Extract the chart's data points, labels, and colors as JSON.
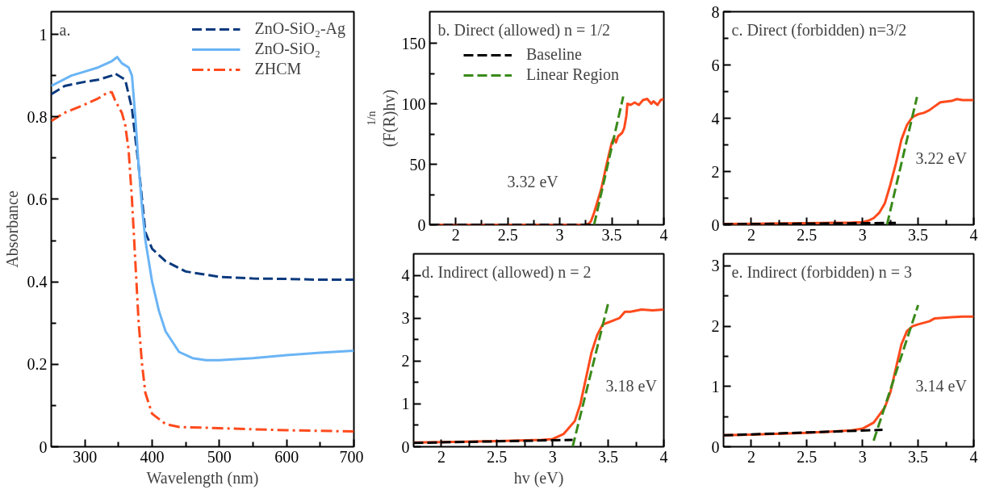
{
  "chart_data": [
    {
      "type": "line",
      "title": "a.",
      "xlabel": "Wavelength (nm)",
      "ylabel": "Absorbance",
      "xlim": [
        250,
        700
      ],
      "ylim": [
        0,
        1.055
      ],
      "xticks": [
        300,
        {
          "value": 350,
          "label": null
        },
        400,
        {
          "value": 450,
          "label": null
        },
        500,
        {
          "value": 550,
          "label": null
        },
        600,
        {
          "value": 650,
          "label": null
        },
        700
      ],
      "yticks": [
        0,
        {
          "value": 0.1,
          "label": null
        },
        0.2,
        {
          "value": 0.3,
          "label": null
        },
        0.4,
        {
          "value": 0.5,
          "label": null
        },
        0.6,
        {
          "value": 0.7,
          "label": null
        },
        0.8,
        {
          "value": 0.9,
          "label": null
        },
        1
      ],
      "grid": false,
      "legend": "top right",
      "marker": "none",
      "series": [
        {
          "name": "ZnO-SiO₂-Ag",
          "color": "#0b3a7e",
          "line_style": "dashed",
          "x": [
            250,
            270,
            300,
            320,
            340,
            345,
            360,
            370,
            375,
            380,
            385,
            390,
            400,
            420,
            450,
            500,
            550,
            600,
            650,
            700
          ],
          "values": [
            0.855,
            0.875,
            0.885,
            0.89,
            0.9,
            0.905,
            0.89,
            0.82,
            0.75,
            0.68,
            0.6,
            0.52,
            0.48,
            0.45,
            0.425,
            0.412,
            0.408,
            0.407,
            0.405,
            0.405
          ]
        },
        {
          "name": "ZnO-SiO₂",
          "color": "#6ab4f5",
          "line_style": "solid",
          "x": [
            250,
            280,
            300,
            320,
            340,
            348,
            355,
            365,
            370,
            375,
            380,
            385,
            390,
            400,
            410,
            420,
            440,
            460,
            480,
            500,
            550,
            600,
            650,
            700
          ],
          "values": [
            0.875,
            0.9,
            0.91,
            0.92,
            0.935,
            0.945,
            0.93,
            0.92,
            0.9,
            0.8,
            0.68,
            0.58,
            0.5,
            0.4,
            0.33,
            0.28,
            0.23,
            0.215,
            0.21,
            0.21,
            0.215,
            0.222,
            0.228,
            0.233
          ]
        },
        {
          "name": "ZHCM",
          "color": "#ff4a1c",
          "line_style": "dashdot",
          "x": [
            250,
            270,
            300,
            320,
            335,
            340,
            345,
            350,
            355,
            360,
            365,
            370,
            375,
            380,
            385,
            390,
            400,
            420,
            440,
            500,
            600,
            700
          ],
          "values": [
            0.79,
            0.81,
            0.83,
            0.845,
            0.86,
            0.86,
            0.84,
            0.825,
            0.81,
            0.78,
            0.72,
            0.6,
            0.45,
            0.3,
            0.2,
            0.13,
            0.08,
            0.055,
            0.048,
            0.045,
            0.04,
            0.037
          ]
        }
      ]
    },
    {
      "type": "line",
      "title": "b. Direct (allowed) n = 1/2",
      "ylabel": "(F(R)hv)$^{1/n}$",
      "xlim": [
        1.75,
        4
      ],
      "ylim": [
        0,
        176
      ],
      "xticks": [
        2,
        {
          "value": 2.25,
          "label": null
        },
        2.5,
        {
          "value": 2.75,
          "label": null
        },
        3,
        {
          "value": 3.25,
          "label": null
        },
        3.5,
        {
          "value": 3.75,
          "label": null
        },
        4
      ],
      "yticks": [
        0,
        {
          "value": 25,
          "label": null
        },
        50,
        {
          "value": 75,
          "label": null
        },
        100,
        {
          "value": 125,
          "label": null
        },
        150
      ],
      "grid": false,
      "legend": "top left",
      "marker": "none",
      "annotations": [
        "3.32 eV"
      ],
      "series": [
        {
          "color": "#ff4a1c",
          "line_style": "solid",
          "x": [
            1.75,
            2.5,
            3.25,
            3.28,
            3.3,
            3.33,
            3.4,
            3.45,
            3.5,
            3.52,
            3.54,
            3.56,
            3.6,
            3.62,
            3.64,
            3.65,
            3.68,
            3.72,
            3.76,
            3.8,
            3.84,
            3.88,
            3.9,
            3.94,
            3.97,
            4.0
          ],
          "values": [
            0,
            0,
            0,
            1,
            3,
            10,
            30,
            50,
            68,
            72,
            68,
            73,
            76,
            80,
            90,
            100,
            99,
            101,
            99,
            103,
            104,
            100,
            102,
            99,
            103,
            104
          ]
        },
        {
          "name": "Baseline",
          "color": "#000000",
          "line_style": "dashed",
          "x": [
            1.75,
            3.3
          ],
          "values": [
            0,
            0
          ]
        },
        {
          "name": "Linear Region",
          "color": "#3a8a1a",
          "line_style": "dashed",
          "x": [
            3.33,
            3.61
          ],
          "values": [
            0,
            106
          ]
        }
      ]
    },
    {
      "type": "line",
      "title": "c. Direct (forbidden) n=3/2",
      "xlim": [
        1.75,
        4
      ],
      "ylim": [
        0,
        8
      ],
      "xticks": [
        2,
        {
          "value": 2.25,
          "label": null
        },
        2.5,
        {
          "value": 2.75,
          "label": null
        },
        3,
        {
          "value": 3.25,
          "label": null
        },
        3.5,
        {
          "value": 3.75,
          "label": null
        },
        4
      ],
      "yticks": [
        0,
        {
          "value": 1,
          "label": null
        },
        2,
        {
          "value": 3,
          "label": null
        },
        4,
        {
          "value": 5,
          "label": null
        },
        6,
        {
          "value": 7,
          "label": null
        },
        8
      ],
      "grid": false,
      "marker": "none",
      "annotations": [
        "3.22 eV"
      ],
      "series": [
        {
          "color": "#ff4a1c",
          "line_style": "solid",
          "x": [
            1.75,
            2.0,
            2.5,
            2.9,
            3.0,
            3.05,
            3.1,
            3.15,
            3.2,
            3.25,
            3.3,
            3.35,
            3.4,
            3.45,
            3.5,
            3.55,
            3.6,
            3.65,
            3.7,
            3.8,
            3.85,
            3.9,
            4.0
          ],
          "values": [
            0.03,
            0.04,
            0.06,
            0.08,
            0.1,
            0.15,
            0.25,
            0.45,
            0.8,
            1.5,
            2.3,
            3.2,
            3.75,
            4.05,
            4.15,
            4.2,
            4.3,
            4.45,
            4.6,
            4.65,
            4.72,
            4.68,
            4.68
          ]
        },
        {
          "color": "#000000",
          "line_style": "dashed",
          "x": [
            1.75,
            3.3
          ],
          "values": [
            0.02,
            0.07
          ]
        },
        {
          "color": "#3a8a1a",
          "line_style": "dashed",
          "x": [
            3.22,
            3.49
          ],
          "values": [
            0,
            4.8
          ]
        }
      ]
    },
    {
      "type": "line",
      "title": "d. Indirect (allowed) n = 2",
      "xlabel": "hv (eV)",
      "xlim": [
        1.75,
        4
      ],
      "ylim": [
        0,
        4.5
      ],
      "xticks": [
        2,
        {
          "value": 2.25,
          "label": null
        },
        2.5,
        {
          "value": 2.75,
          "label": null
        },
        3,
        {
          "value": 3.25,
          "label": null
        },
        3.5,
        {
          "value": 3.75,
          "label": null
        },
        4
      ],
      "yticks": [
        0,
        {
          "value": 0.5,
          "label": null
        },
        1,
        {
          "value": 1.5,
          "label": null
        },
        2,
        {
          "value": 2.5,
          "label": null
        },
        3,
        {
          "value": 3.5,
          "label": null
        },
        4
      ],
      "grid": false,
      "marker": "none",
      "annotations": [
        "3.18 eV"
      ],
      "series": [
        {
          "color": "#ff4a1c",
          "line_style": "solid",
          "x": [
            1.75,
            2.0,
            2.5,
            2.9,
            3.0,
            3.1,
            3.2,
            3.25,
            3.3,
            3.35,
            3.4,
            3.45,
            3.5,
            3.55,
            3.6,
            3.65,
            3.7,
            3.8,
            3.9,
            4.0
          ],
          "values": [
            0.1,
            0.11,
            0.13,
            0.16,
            0.18,
            0.3,
            0.6,
            1.0,
            1.6,
            2.2,
            2.6,
            2.85,
            2.9,
            2.95,
            3.0,
            3.15,
            3.15,
            3.2,
            3.18,
            3.2
          ]
        },
        {
          "color": "#000000",
          "line_style": "dashed",
          "x": [
            1.75,
            3.18
          ],
          "values": [
            0.09,
            0.16
          ]
        },
        {
          "color": "#3a8a1a",
          "line_style": "dashed",
          "x": [
            3.18,
            3.5
          ],
          "values": [
            0,
            3.35
          ]
        }
      ]
    },
    {
      "type": "line",
      "title": "e. Indirect (forbidden) n = 3",
      "xlim": [
        1.75,
        4
      ],
      "ylim": [
        0,
        3.2
      ],
      "xticks": [
        2,
        {
          "value": 2.25,
          "label": null
        },
        2.5,
        {
          "value": 2.75,
          "label": null
        },
        3,
        {
          "value": 3.25,
          "label": null
        },
        3.5,
        {
          "value": 3.75,
          "label": null
        },
        4
      ],
      "yticks": [
        0,
        {
          "value": 0.5,
          "label": null
        },
        1,
        {
          "value": 1.5,
          "label": null
        },
        2,
        {
          "value": 2.5,
          "label": null
        },
        3
      ],
      "grid": false,
      "marker": "none",
      "annotations": [
        "3.14 eV"
      ],
      "series": [
        {
          "color": "#ff4a1c",
          "line_style": "solid",
          "x": [
            1.75,
            2.0,
            2.5,
            2.9,
            3.0,
            3.1,
            3.2,
            3.25,
            3.3,
            3.35,
            3.4,
            3.45,
            3.5,
            3.6,
            3.65,
            3.8,
            3.9,
            4.0
          ],
          "values": [
            0.19,
            0.2,
            0.23,
            0.27,
            0.3,
            0.4,
            0.65,
            0.9,
            1.3,
            1.7,
            1.92,
            2.0,
            2.03,
            2.08,
            2.13,
            2.15,
            2.16,
            2.16
          ]
        },
        {
          "color": "#000000",
          "line_style": "dashed",
          "x": [
            1.75,
            3.18
          ],
          "values": [
            0.19,
            0.28
          ]
        },
        {
          "color": "#3a8a1a",
          "line_style": "dashed",
          "x": [
            3.1,
            3.5
          ],
          "values": [
            0.1,
            2.35
          ]
        }
      ]
    }
  ]
}
